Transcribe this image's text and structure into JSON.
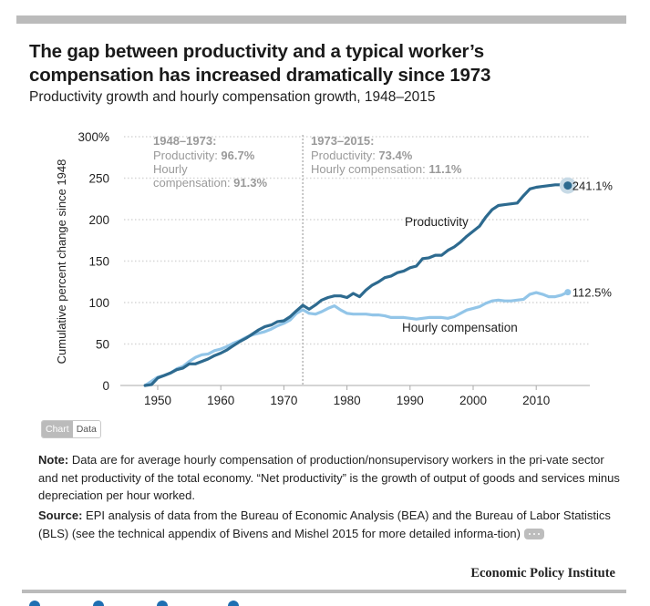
{
  "header": {
    "title": "The gap between productivity and a typical worker’s compensation has increased dramatically since 1973",
    "subtitle": "Productivity growth and hourly compensation growth, 1948–2015"
  },
  "colors": {
    "productivity": "#2d6a8f",
    "compensation": "#92c5e8",
    "grid": "#d6d6d6",
    "annotation": "#9a9a9a",
    "bar": "#bbbbbb",
    "end_halo": "#c7dae6"
  },
  "annotations": {
    "left": {
      "heading": "1948–1973:",
      "prod_label": "Productivity: ",
      "prod_value": "96.7%",
      "comp_label_1": "Hourly",
      "comp_label_2": "compensation: ",
      "comp_value": "91.3%"
    },
    "right": {
      "heading": "1973–2015:",
      "prod_label": "Productivity: ",
      "prod_value": "73.4%",
      "comp_label": "Hourly compensation: ",
      "comp_value": "11.1%"
    }
  },
  "chart_data": {
    "type": "line",
    "title": "The gap between productivity and a typical worker’s compensation has increased dramatically since 1973",
    "subtitle": "Productivity growth and hourly compensation growth, 1948–2015",
    "xlabel": "",
    "ylabel": "Cumulative percent change since 1948",
    "ylim": [
      0,
      300
    ],
    "xlim": [
      1946,
      2018
    ],
    "yticks": [
      0,
      50,
      100,
      150,
      200,
      250,
      300
    ],
    "ytick_labels": [
      "0",
      "50",
      "100",
      "150",
      "200",
      "250",
      "300%"
    ],
    "xticks": [
      1950,
      1960,
      1970,
      1980,
      1990,
      2000,
      2010
    ],
    "xtick_labels": [
      "1950",
      "1960",
      "1970",
      "1980",
      "1990",
      "2000",
      "2010"
    ],
    "grid": true,
    "divider_year": 1973,
    "legend": "inline",
    "x": [
      1948,
      1949,
      1950,
      1951,
      1952,
      1953,
      1954,
      1955,
      1956,
      1957,
      1958,
      1959,
      1960,
      1961,
      1962,
      1963,
      1964,
      1965,
      1966,
      1967,
      1968,
      1969,
      1970,
      1971,
      1972,
      1973,
      1974,
      1975,
      1976,
      1977,
      1978,
      1979,
      1980,
      1981,
      1982,
      1983,
      1984,
      1985,
      1986,
      1987,
      1988,
      1989,
      1990,
      1991,
      1992,
      1993,
      1994,
      1995,
      1996,
      1997,
      1998,
      1999,
      2000,
      2001,
      2002,
      2003,
      2004,
      2005,
      2006,
      2007,
      2008,
      2009,
      2010,
      2011,
      2012,
      2013,
      2014,
      2015
    ],
    "series": [
      {
        "name": "Productivity",
        "end_label": "241.1%",
        "values": [
          0,
          1,
          9,
          12,
          15,
          19,
          21,
          26,
          26,
          29,
          32,
          36,
          39,
          43,
          48,
          53,
          57,
          62,
          67,
          71,
          73,
          77,
          78,
          83,
          90,
          96.7,
          92,
          97,
          103,
          106,
          108,
          108,
          106,
          111,
          107,
          115,
          121,
          125,
          130,
          132,
          136,
          138,
          142,
          144,
          153,
          154,
          157,
          157,
          163,
          167,
          173,
          180,
          186,
          192,
          203,
          212,
          217,
          218,
          219,
          220,
          229,
          237,
          239,
          240,
          241,
          242,
          242,
          241.1
        ]
      },
      {
        "name": "Hourly compensation",
        "end_label": "112.5%",
        "values": [
          0,
          5,
          10,
          12,
          15,
          20,
          23,
          29,
          34,
          37,
          38,
          42,
          44,
          47,
          51,
          54,
          58,
          61,
          63,
          65,
          68,
          72,
          75,
          79,
          87,
          91.3,
          87,
          86,
          89,
          93,
          96,
          91,
          87,
          86,
          86,
          86,
          85,
          85,
          84,
          82,
          82,
          82,
          81,
          80,
          81,
          82,
          82,
          82,
          81,
          83,
          87,
          91,
          93,
          95,
          99,
          102,
          103,
          102,
          102,
          103,
          104,
          110,
          112,
          110,
          107,
          107,
          109,
          112.5
        ]
      }
    ],
    "series_labels": [
      "Productivity",
      "Hourly compensation"
    ]
  },
  "toggle": {
    "chart": "Chart",
    "data": "Data"
  },
  "notes": {
    "note_label": "Note:",
    "note_text": " Data are for average hourly compensation of production/nonsupervisory workers in the pri-vate sector and net productivity of the total economy. “Net productivity” is the growth of output of goods and services minus depreciation per hour worked.",
    "source_label": "Source:",
    "source_text": " EPI analysis of data from the Bureau of Economic Analysis (BEA) and the Bureau of Labor Statistics (BLS) (see the technical appendix of Bivens and Mishel 2015 for more detailed informa-tion)"
  },
  "footer": {
    "brand": "Economic Policy Institute"
  }
}
